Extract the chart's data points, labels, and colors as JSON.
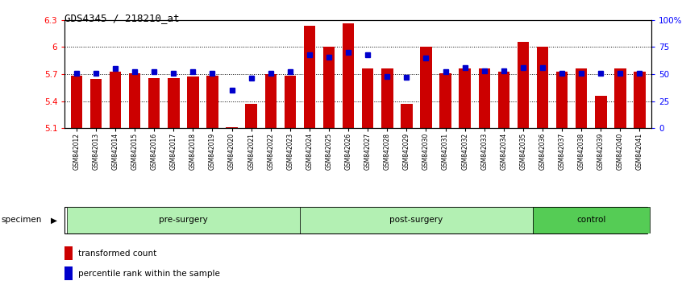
{
  "title": "GDS4345 / 218210_at",
  "categories": [
    "GSM842012",
    "GSM842013",
    "GSM842014",
    "GSM842015",
    "GSM842016",
    "GSM842017",
    "GSM842018",
    "GSM842019",
    "GSM842020",
    "GSM842021",
    "GSM842022",
    "GSM842023",
    "GSM842024",
    "GSM842025",
    "GSM842026",
    "GSM842027",
    "GSM842028",
    "GSM842029",
    "GSM842030",
    "GSM842031",
    "GSM842032",
    "GSM842033",
    "GSM842034",
    "GSM842035",
    "GSM842036",
    "GSM842037",
    "GSM842038",
    "GSM842039",
    "GSM842040",
    "GSM842041"
  ],
  "red_values": [
    5.68,
    5.65,
    5.73,
    5.71,
    5.66,
    5.66,
    5.67,
    5.68,
    5.11,
    5.37,
    5.7,
    5.68,
    6.24,
    6.0,
    6.26,
    5.76,
    5.76,
    5.37,
    6.0,
    5.71,
    5.76,
    5.76,
    5.73,
    6.06,
    6.0,
    5.73,
    5.76,
    5.46,
    5.76,
    5.73
  ],
  "blue_values": [
    51,
    51,
    55,
    52,
    52,
    51,
    52,
    51,
    35,
    46,
    51,
    52,
    68,
    66,
    70,
    68,
    48,
    47,
    65,
    52,
    56,
    53,
    53,
    56,
    56,
    51,
    51,
    51,
    51,
    51
  ],
  "ylim_left": [
    5.1,
    6.3
  ],
  "ylim_right": [
    0,
    100
  ],
  "yticks_left": [
    5.1,
    5.4,
    5.7,
    6.0,
    6.3
  ],
  "ytick_labels_left": [
    "5.1",
    "5.4",
    "5.7",
    "6",
    "6.3"
  ],
  "yticks_right": [
    0,
    25,
    50,
    75,
    100
  ],
  "ytick_labels_right": [
    "0",
    "25",
    "50",
    "75",
    "100%"
  ],
  "groups": [
    {
      "label": "pre-surgery",
      "start": 0,
      "end": 12,
      "color": "#b3f0b3"
    },
    {
      "label": "post-surgery",
      "start": 12,
      "end": 24,
      "color": "#b3f0b3"
    },
    {
      "label": "control",
      "start": 24,
      "end": 30,
      "color": "#55cc55"
    }
  ],
  "bar_color": "#CC0000",
  "dot_color": "#0000CC",
  "base_value": 5.1,
  "legend_items": [
    {
      "label": "transformed count",
      "color": "#CC0000"
    },
    {
      "label": "percentile rank within the sample",
      "color": "#0000CC"
    }
  ],
  "dotted_lines": [
    5.4,
    5.7,
    6.0
  ],
  "grid_yticks_right_labels": [
    "0%",
    "25%",
    "50%",
    "75%",
    "100%"
  ]
}
